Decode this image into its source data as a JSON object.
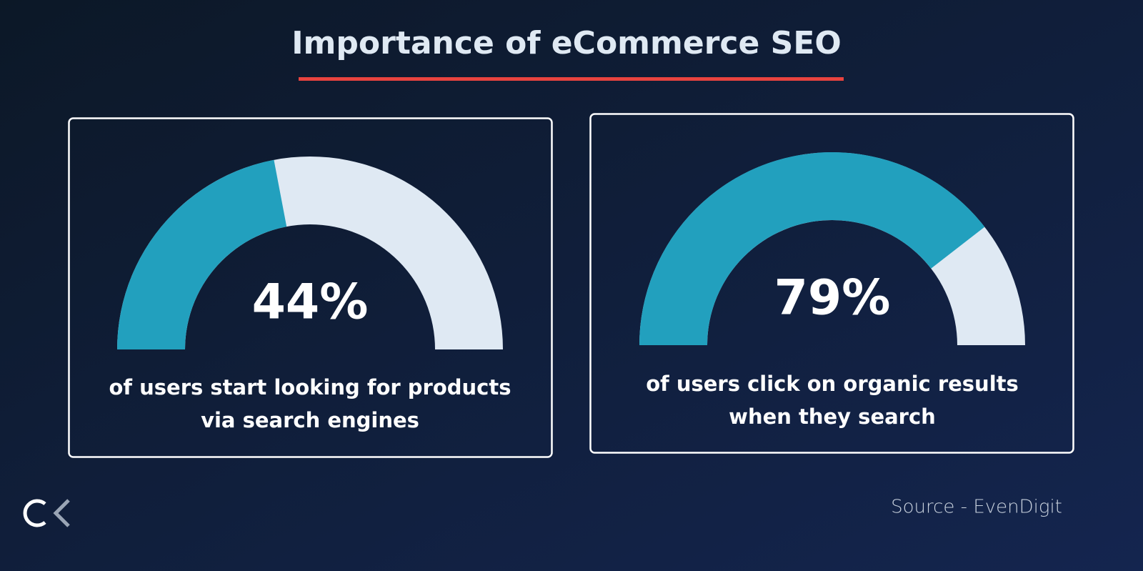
{
  "title": "Importance of eCommerce SEO",
  "source": "Source - EvenDigit",
  "chart_data": [
    {
      "type": "gauge",
      "values": [
        44
      ],
      "value_labels": [
        "44%"
      ],
      "ylim": [
        0,
        100
      ],
      "color": "#22a0be",
      "track_color": "#dfe9f3",
      "caption": [
        "of users start looking for products",
        "via search engines"
      ]
    },
    {
      "type": "gauge",
      "values": [
        79
      ],
      "value_labels": [
        "79%"
      ],
      "ylim": [
        0,
        100
      ],
      "color": "#22a0be",
      "track_color": "#dfe9f3",
      "caption": [
        "of users click on organic results",
        "when they search"
      ]
    }
  ]
}
